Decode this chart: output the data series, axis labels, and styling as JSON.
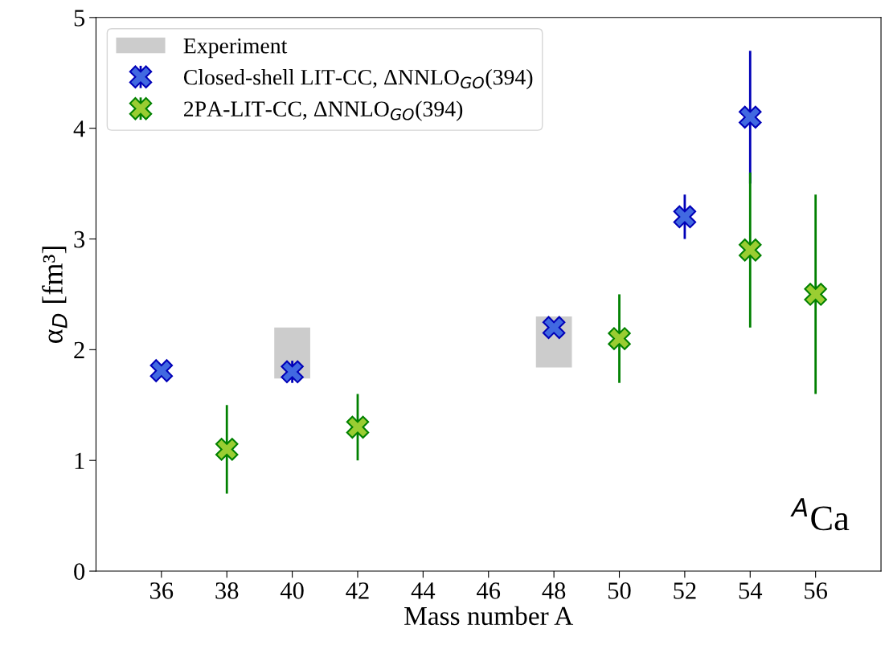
{
  "chart_data": {
    "type": "scatter",
    "xlabel": "Mass number A",
    "ylabel": "α$_{D}$ [fm³]",
    "xlim": [
      34,
      58
    ],
    "xticks": [
      36,
      38,
      40,
      42,
      44,
      46,
      48,
      50,
      52,
      54,
      56
    ],
    "ylim": [
      0,
      5
    ],
    "yticks": [
      0,
      1,
      2,
      3,
      4,
      5
    ],
    "grid": false,
    "legend": "top left",
    "marker": "cross",
    "annotations": [
      "$^{A}$Ca"
    ],
    "series": [
      {
        "name": "Experiment",
        "type": "bar",
        "color": "#cccccc",
        "x": [
          40,
          48
        ],
        "base": [
          1.74,
          1.84
        ],
        "values": [
          0.46,
          0.46
        ]
      },
      {
        "name": "Closed-shell LIT-CC, ΔNNLO$_{GO}$(394)",
        "color": "#4169e1",
        "x": [
          36,
          40,
          48,
          52,
          54
        ],
        "values": [
          1.81,
          1.8,
          2.2,
          3.2,
          4.1
        ],
        "errors": [
          null,
          0.1,
          0.05,
          0.2,
          0.6
        ]
      },
      {
        "name": "2PA-LIT-CC, ΔNNLO$_{GO}$(394)",
        "color": "#9acd32",
        "x": [
          38,
          42,
          50,
          54,
          56
        ],
        "values": [
          1.1,
          1.3,
          2.1,
          2.9,
          2.5
        ],
        "errors": [
          0.4,
          0.3,
          0.4,
          0.7,
          0.9
        ]
      }
    ]
  }
}
